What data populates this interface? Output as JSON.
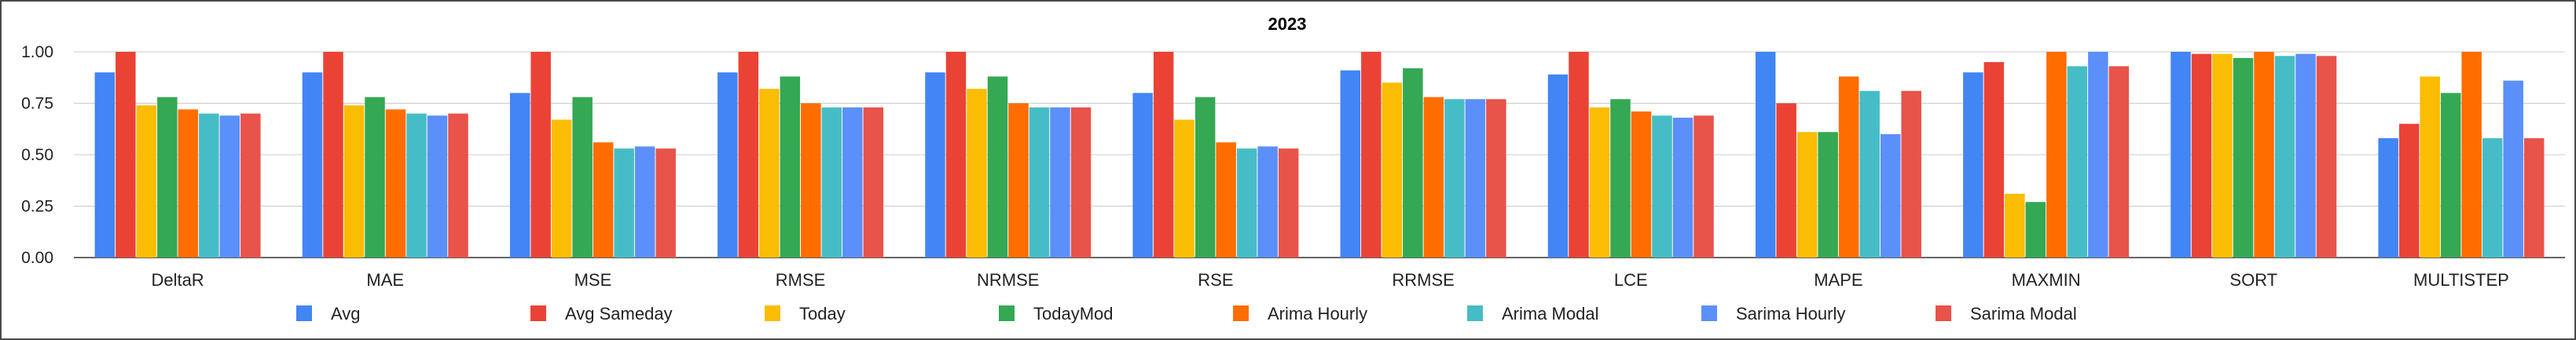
{
  "chart_data": {
    "type": "bar",
    "title": "2023",
    "xlabel": "",
    "ylabel": "",
    "ylim": [
      0,
      1
    ],
    "yticks": [
      "0.00",
      "0.25",
      "0.50",
      "0.75",
      "1.00"
    ],
    "grid": true,
    "legend_position": "bottom",
    "categories": [
      "DeltaR",
      "MAE",
      "MSE",
      "RMSE",
      "NRMSE",
      "RSE",
      "RRMSE",
      "LCE",
      "MAPE",
      "MAXMIN",
      "SORT",
      "MULTISTEP"
    ],
    "series": [
      {
        "name": "Avg",
        "color": "#4285f4",
        "values": [
          0.9,
          0.9,
          0.8,
          0.9,
          0.9,
          0.8,
          0.91,
          0.89,
          1.0,
          0.9,
          1.0,
          0.58
        ]
      },
      {
        "name": "Avg Sameday",
        "color": "#ea4335",
        "values": [
          1.0,
          1.0,
          1.0,
          1.0,
          1.0,
          1.0,
          1.0,
          1.0,
          0.75,
          0.95,
          0.99,
          0.65
        ]
      },
      {
        "name": "Today",
        "color": "#fbbc04",
        "values": [
          0.74,
          0.74,
          0.67,
          0.82,
          0.82,
          0.67,
          0.85,
          0.73,
          0.61,
          0.31,
          0.99,
          0.88
        ]
      },
      {
        "name": "TodayMod",
        "color": "#34a853",
        "values": [
          0.78,
          0.78,
          0.78,
          0.88,
          0.88,
          0.78,
          0.92,
          0.77,
          0.61,
          0.27,
          0.97,
          0.8
        ]
      },
      {
        "name": "Arima Hourly",
        "color": "#ff6d01",
        "values": [
          0.72,
          0.72,
          0.56,
          0.75,
          0.75,
          0.56,
          0.78,
          0.71,
          0.88,
          1.0,
          1.0,
          1.0
        ]
      },
      {
        "name": "Arima Modal",
        "color": "#46bdc6",
        "values": [
          0.7,
          0.7,
          0.53,
          0.73,
          0.73,
          0.53,
          0.77,
          0.69,
          0.81,
          0.93,
          0.98,
          0.58
        ]
      },
      {
        "name": "Sarima Hourly",
        "color": "#5b8ff9",
        "values": [
          0.69,
          0.69,
          0.54,
          0.73,
          0.73,
          0.54,
          0.77,
          0.68,
          0.6,
          1.0,
          0.99,
          0.86
        ]
      },
      {
        "name": "Sarima Modal",
        "color": "#e8534a",
        "values": [
          0.7,
          0.7,
          0.53,
          0.73,
          0.73,
          0.53,
          0.77,
          0.69,
          0.81,
          0.93,
          0.98,
          0.58
        ]
      }
    ]
  }
}
